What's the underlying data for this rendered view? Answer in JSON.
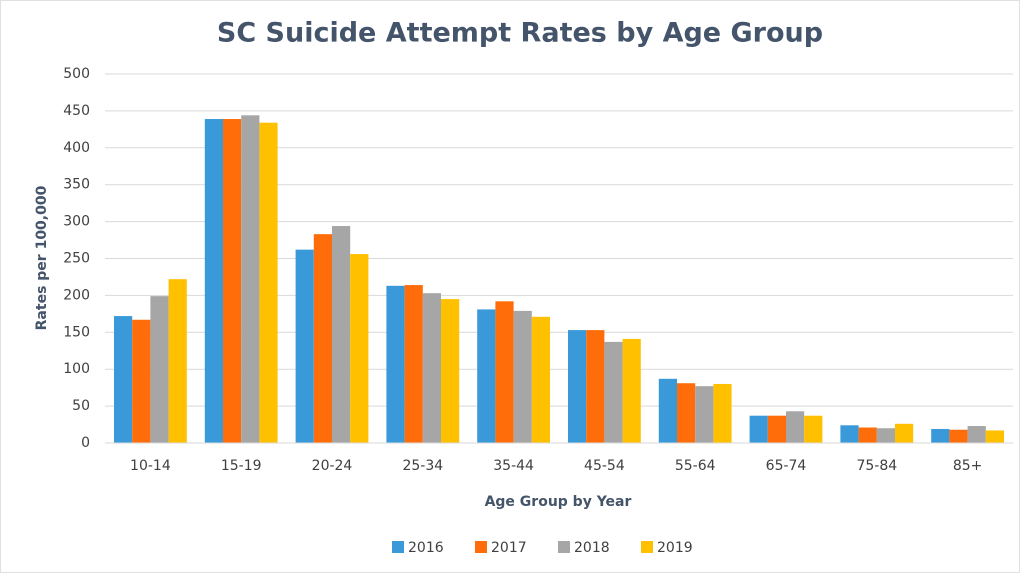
{
  "chart_data": {
    "type": "bar",
    "title": "SC Suicide Attempt Rates by Age Group",
    "x_label": "Age Group by Year",
    "y_label": "Rates per 100,000",
    "categories": [
      "10-14",
      "15-19",
      "20-24",
      "25-34",
      "35-44",
      "45-54",
      "55-64",
      "65-74",
      "75-84",
      "85+"
    ],
    "series": [
      {
        "name": "2016",
        "color": "#3a9ad9",
        "values": [
          172,
          439,
          262,
          213,
          181,
          153,
          87,
          37,
          24,
          19
        ]
      },
      {
        "name": "2017",
        "color": "#ff6d0a",
        "values": [
          167,
          439,
          283,
          214,
          192,
          153,
          81,
          37,
          21,
          18
        ]
      },
      {
        "name": "2018",
        "color": "#a6a6a6",
        "values": [
          199,
          444,
          294,
          203,
          179,
          137,
          77,
          43,
          20,
          23
        ]
      },
      {
        "name": "2019",
        "color": "#ffc000",
        "values": [
          222,
          434,
          256,
          195,
          171,
          141,
          80,
          37,
          26,
          17
        ]
      }
    ],
    "ylim": [
      0,
      500
    ],
    "yticks": [
      0,
      50,
      100,
      150,
      200,
      250,
      300,
      350,
      400,
      450,
      500
    ],
    "grid": true,
    "legend": "bottom"
  }
}
